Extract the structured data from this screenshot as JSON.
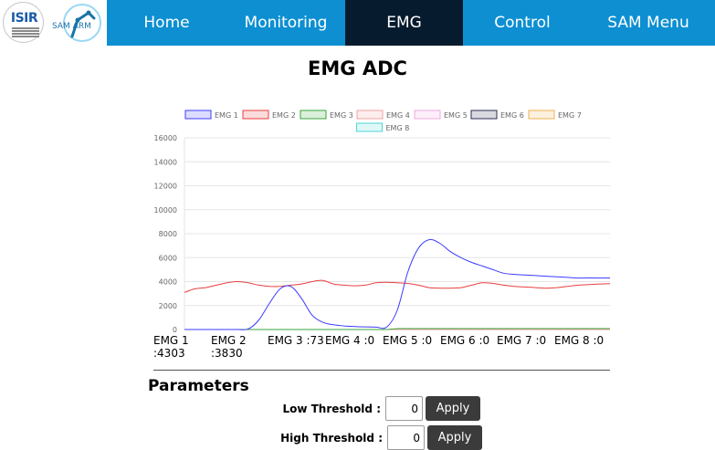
{
  "header": {
    "logos": {
      "isir_text": "ISIR",
      "sam_text": "SAM ARM"
    },
    "nav": [
      {
        "label": "Home",
        "active": false
      },
      {
        "label": "Monitoring",
        "active": false
      },
      {
        "label": "EMG",
        "active": true
      },
      {
        "label": "Control",
        "active": false
      },
      {
        "label": "SAM Menu",
        "active": false
      }
    ],
    "colors": {
      "nav_bg": "#0d8fd2",
      "nav_active_bg": "#071b2e"
    }
  },
  "page": {
    "title": "EMG ADC"
  },
  "chart_data": {
    "type": "line",
    "title": "",
    "xlabel": "",
    "ylabel": "",
    "ylim": [
      0,
      16000
    ],
    "yticks": [
      0,
      2000,
      4000,
      6000,
      8000,
      10000,
      12000,
      14000,
      16000
    ],
    "grid": true,
    "legend_position": "top",
    "x": [
      0,
      1,
      2,
      3,
      4,
      5,
      6,
      7,
      8,
      9,
      10,
      11,
      12,
      13,
      14,
      15,
      16,
      17,
      18,
      19,
      20,
      21,
      22,
      23,
      24,
      25,
      26,
      27,
      28,
      29,
      30,
      31,
      32,
      33,
      34,
      35,
      36,
      37,
      38,
      39,
      40
    ],
    "series": [
      {
        "name": "EMG 1",
        "color": "#3b3bff",
        "values": [
          0,
          0,
          0,
          0,
          0,
          0,
          50,
          800,
          2200,
          3400,
          3600,
          2600,
          1200,
          600,
          400,
          300,
          250,
          220,
          200,
          200,
          1600,
          4800,
          6800,
          7500,
          7200,
          6500,
          6000,
          5600,
          5300,
          5000,
          4700,
          4600,
          4550,
          4500,
          4450,
          4400,
          4350,
          4300,
          4303,
          4300,
          4303
        ]
      },
      {
        "name": "EMG 2",
        "color": "#e83e3e",
        "values": [
          3100,
          3400,
          3500,
          3700,
          3900,
          4000,
          3900,
          3700,
          3600,
          3600,
          3700,
          3800,
          4000,
          4100,
          3800,
          3700,
          3650,
          3700,
          3900,
          3950,
          3900,
          3850,
          3700,
          3500,
          3450,
          3450,
          3500,
          3700,
          3900,
          3850,
          3700,
          3600,
          3550,
          3500,
          3450,
          3500,
          3600,
          3700,
          3750,
          3800,
          3830
        ]
      },
      {
        "name": "EMG 3",
        "color": "#3aa63a",
        "values": [
          0,
          0,
          0,
          0,
          0,
          0,
          0,
          0,
          0,
          0,
          0,
          0,
          0,
          0,
          0,
          0,
          0,
          0,
          0,
          0,
          73,
          73,
          73,
          73,
          73,
          73,
          73,
          73,
          73,
          73,
          73,
          73,
          73,
          73,
          73,
          73,
          73,
          73,
          73,
          73,
          73
        ]
      },
      {
        "name": "EMG 4",
        "color": "#f0a0a0",
        "values": [
          0,
          0,
          0,
          0,
          0,
          0,
          0,
          0,
          0,
          0,
          0,
          0,
          0,
          0,
          0,
          0,
          0,
          0,
          0,
          0,
          0,
          0,
          0,
          0,
          0,
          0,
          0,
          0,
          0,
          0,
          0,
          0,
          0,
          0,
          0,
          0,
          0,
          0,
          0,
          0,
          0
        ]
      },
      {
        "name": "EMG 5",
        "color": "#f0a8e0",
        "values": [
          0,
          0,
          0,
          0,
          0,
          0,
          0,
          0,
          0,
          0,
          0,
          0,
          0,
          0,
          0,
          0,
          0,
          0,
          0,
          0,
          0,
          0,
          0,
          0,
          0,
          0,
          0,
          0,
          0,
          0,
          0,
          0,
          0,
          0,
          0,
          0,
          0,
          0,
          0,
          0,
          0
        ]
      },
      {
        "name": "EMG 6",
        "color": "#2b2b55",
        "values": [
          0,
          0,
          0,
          0,
          0,
          0,
          0,
          0,
          0,
          0,
          0,
          0,
          0,
          0,
          0,
          0,
          0,
          0,
          0,
          0,
          0,
          0,
          0,
          0,
          0,
          0,
          0,
          0,
          0,
          0,
          0,
          0,
          0,
          0,
          0,
          0,
          0,
          0,
          0,
          0,
          0
        ]
      },
      {
        "name": "EMG 7",
        "color": "#f0b050",
        "values": [
          0,
          0,
          0,
          0,
          0,
          0,
          0,
          0,
          0,
          0,
          0,
          0,
          0,
          0,
          0,
          0,
          0,
          0,
          0,
          0,
          0,
          0,
          0,
          0,
          0,
          0,
          0,
          0,
          0,
          0,
          0,
          0,
          0,
          0,
          0,
          0,
          0,
          0,
          0,
          0,
          0
        ]
      },
      {
        "name": "EMG 8",
        "color": "#4fd6d6",
        "values": [
          0,
          0,
          0,
          0,
          0,
          0,
          0,
          0,
          0,
          0,
          0,
          0,
          0,
          0,
          0,
          0,
          0,
          0,
          0,
          0,
          0,
          0,
          0,
          0,
          0,
          0,
          0,
          0,
          0,
          0,
          0,
          0,
          0,
          0,
          0,
          0,
          0,
          0,
          0,
          0,
          0
        ]
      }
    ]
  },
  "readout": [
    {
      "label": "EMG 1",
      "value": ":4303",
      "wrap": true
    },
    {
      "label": "EMG 2",
      "value": ":3830",
      "wrap": true
    },
    {
      "label": "EMG 3",
      "value": ":73",
      "wrap": false
    },
    {
      "label": "EMG 4",
      "value": ":0",
      "wrap": false
    },
    {
      "label": "EMG 5",
      "value": ":0",
      "wrap": false
    },
    {
      "label": "EMG 6",
      "value": ":0",
      "wrap": false
    },
    {
      "label": "EMG 7",
      "value": ":0",
      "wrap": false
    },
    {
      "label": "EMG 8",
      "value": ":0",
      "wrap": false
    }
  ],
  "parameters": {
    "title": "Parameters",
    "low": {
      "label": "Low Threshold :",
      "value": "0",
      "button": "Apply"
    },
    "high": {
      "label": "High Threshold :",
      "value": "0",
      "button": "Apply"
    }
  }
}
